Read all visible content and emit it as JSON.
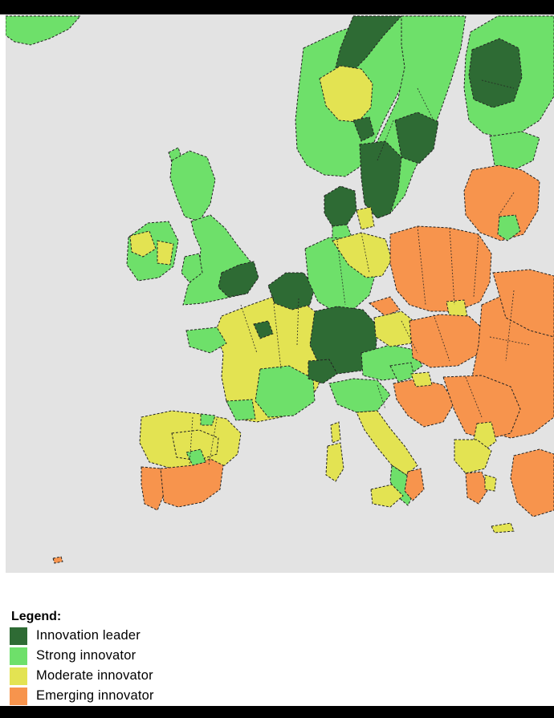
{
  "legend": {
    "title": "Legend:",
    "items": [
      {
        "key": "leader",
        "label": "Innovation leader",
        "color": "#2e6b34"
      },
      {
        "key": "strong",
        "label": "Strong innovator",
        "color": "#6ee06a"
      },
      {
        "key": "moderate",
        "label": "Moderate innovator",
        "color": "#e3e352"
      },
      {
        "key": "emerging",
        "label": "Emerging innovator",
        "color": "#f7944d"
      }
    ]
  },
  "map": {
    "background_color": "#e3e3e3",
    "border_color": "#222222",
    "border_style": "dashed"
  }
}
